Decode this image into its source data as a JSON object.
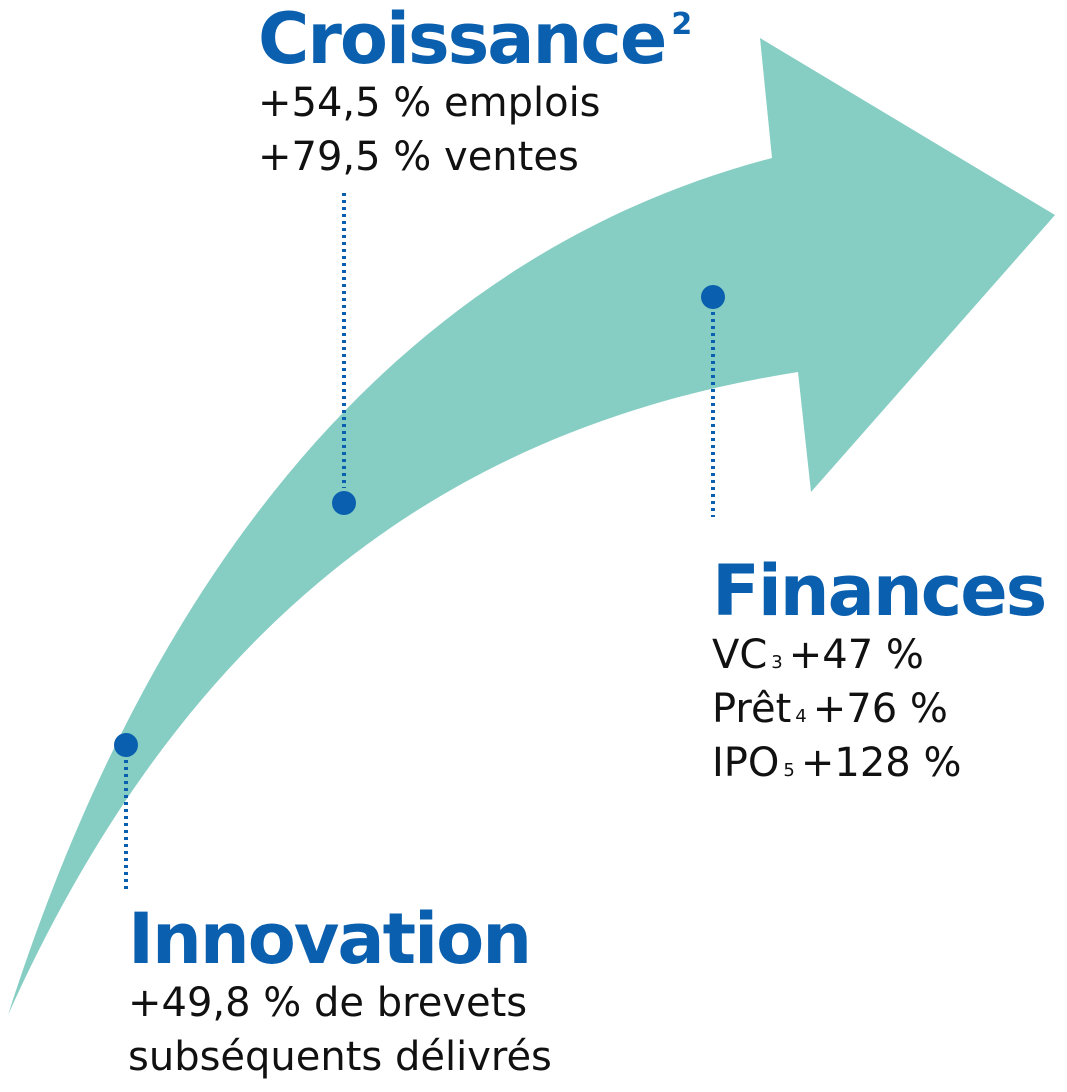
{
  "colors": {
    "arrow": "#86cdc3",
    "accent": "#0a5fae",
    "text": "#111111"
  },
  "croissance": {
    "title": "Croissance",
    "title_note": "2",
    "line1": "+54,5 % emplois",
    "line2": "+79,5 % ventes"
  },
  "innovation": {
    "title": "Innovation",
    "line1": "+49,8 % de brevets",
    "line2": "subséquents délivrés"
  },
  "finances": {
    "title": "Finances",
    "rows": [
      {
        "label": "VC",
        "note": "3",
        "value": "+47 %"
      },
      {
        "label": "Prêt",
        "note": "4",
        "value": "+76 %"
      },
      {
        "label": "IPO",
        "note": "5",
        "value": "+128 %"
      }
    ]
  }
}
